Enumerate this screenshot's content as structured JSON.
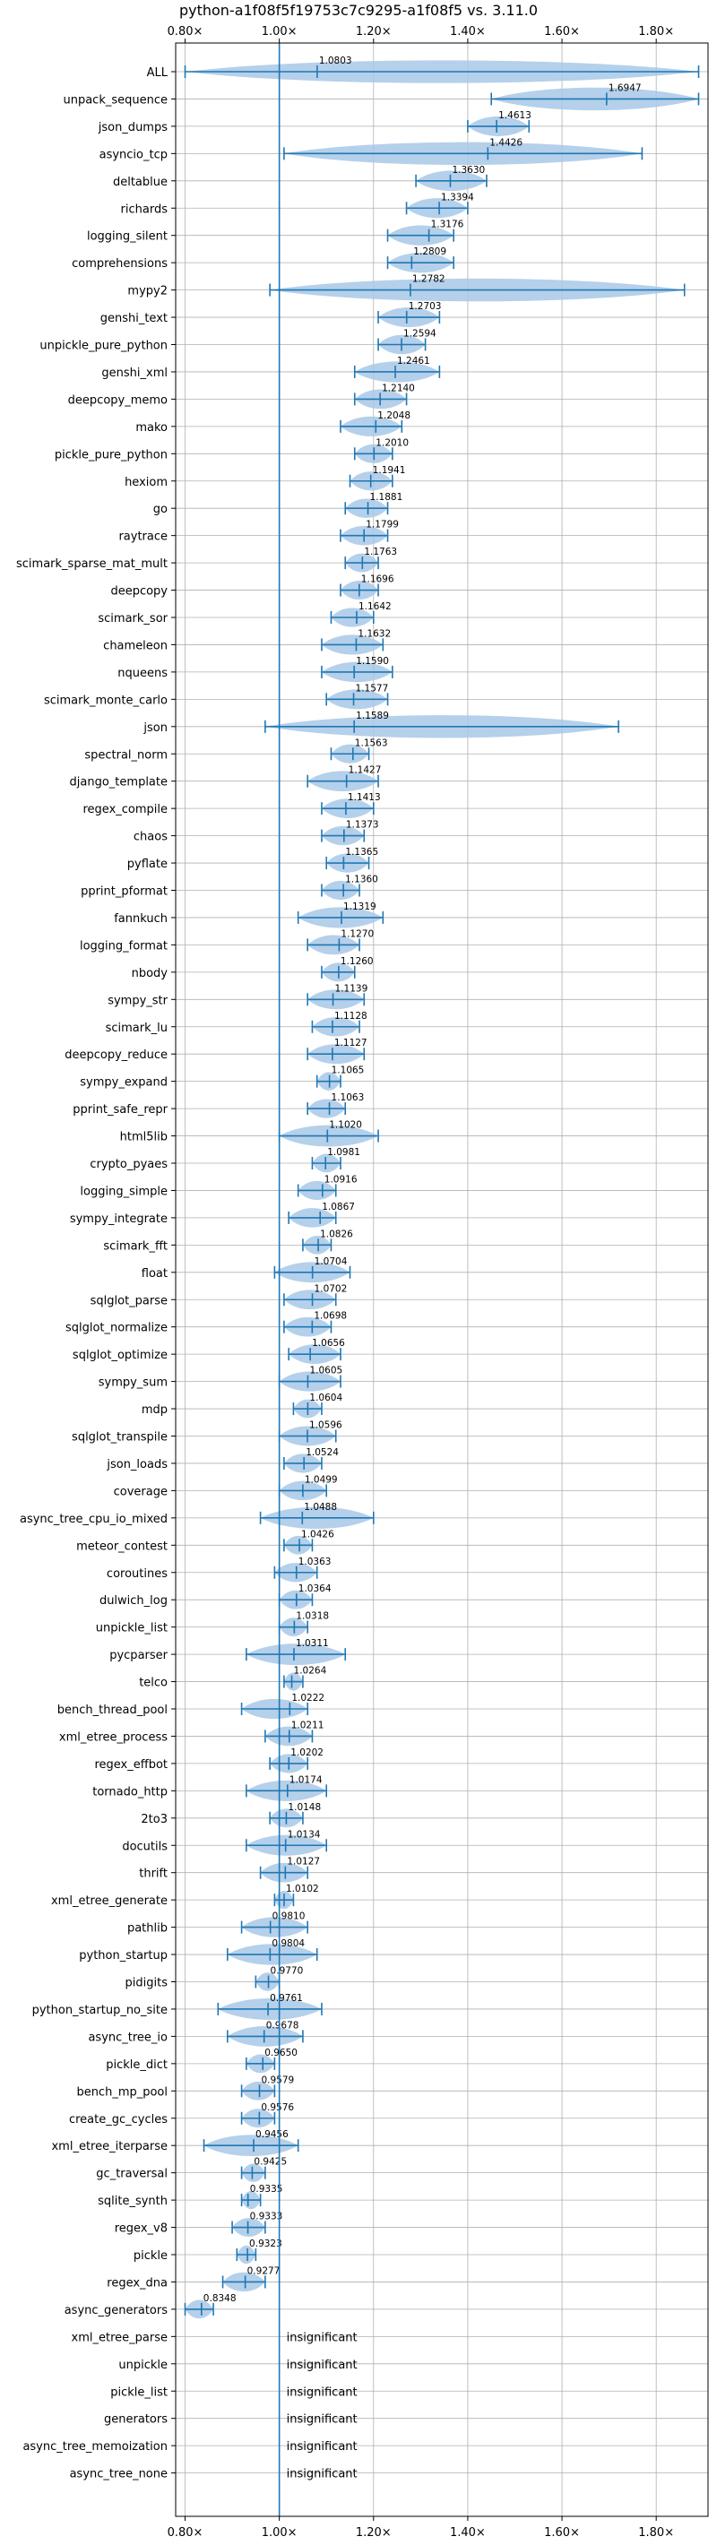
{
  "chart_data": {
    "type": "violin",
    "title": "python-a1f08f5f19753c7c9295-a1f08f5 vs. 3.11.0",
    "xlabel": "",
    "ylabel": "",
    "xlim": [
      0.78,
      1.91
    ],
    "xticks": [
      0.8,
      1.0,
      1.2,
      1.4,
      1.6,
      1.8
    ],
    "xtick_labels": [
      "0.80×",
      "1.00×",
      "1.20×",
      "1.40×",
      "1.60×",
      "1.80×"
    ],
    "reference_x": 1.0,
    "grid": true,
    "colors": {
      "violin": "#a8c8e6",
      "line": "#1f77b4"
    },
    "insignificant_label": "insignificant",
    "benchmarks": [
      {
        "name": "ALL",
        "value": 1.0803,
        "label": "1.0803",
        "min": 0.8,
        "max": 1.89
      },
      {
        "name": "unpack_sequence",
        "value": 1.6947,
        "label": "1.6947",
        "min": 1.45,
        "max": 1.89
      },
      {
        "name": "json_dumps",
        "value": 1.4613,
        "label": "1.4613",
        "min": 1.4,
        "max": 1.53
      },
      {
        "name": "asyncio_tcp",
        "value": 1.4426,
        "label": "1.4426",
        "min": 1.01,
        "max": 1.77
      },
      {
        "name": "deltablue",
        "value": 1.363,
        "label": "1.3630",
        "min": 1.29,
        "max": 1.44
      },
      {
        "name": "richards",
        "value": 1.3394,
        "label": "1.3394",
        "min": 1.27,
        "max": 1.4
      },
      {
        "name": "logging_silent",
        "value": 1.3176,
        "label": "1.3176",
        "min": 1.23,
        "max": 1.37
      },
      {
        "name": "comprehensions",
        "value": 1.2809,
        "label": "1.2809",
        "min": 1.23,
        "max": 1.37
      },
      {
        "name": "mypy2",
        "value": 1.2782,
        "label": "1.2782",
        "min": 0.98,
        "max": 1.86
      },
      {
        "name": "genshi_text",
        "value": 1.2703,
        "label": "1.2703",
        "min": 1.21,
        "max": 1.34
      },
      {
        "name": "unpickle_pure_python",
        "value": 1.2594,
        "label": "1.2594",
        "min": 1.21,
        "max": 1.31
      },
      {
        "name": "genshi_xml",
        "value": 1.2461,
        "label": "1.2461",
        "min": 1.16,
        "max": 1.34
      },
      {
        "name": "deepcopy_memo",
        "value": 1.214,
        "label": "1.2140",
        "min": 1.16,
        "max": 1.27
      },
      {
        "name": "mako",
        "value": 1.2048,
        "label": "1.2048",
        "min": 1.13,
        "max": 1.26
      },
      {
        "name": "pickle_pure_python",
        "value": 1.201,
        "label": "1.2010",
        "min": 1.16,
        "max": 1.24
      },
      {
        "name": "hexiom",
        "value": 1.1941,
        "label": "1.1941",
        "min": 1.15,
        "max": 1.24
      },
      {
        "name": "go",
        "value": 1.1881,
        "label": "1.1881",
        "min": 1.14,
        "max": 1.23
      },
      {
        "name": "raytrace",
        "value": 1.1799,
        "label": "1.1799",
        "min": 1.13,
        "max": 1.23
      },
      {
        "name": "scimark_sparse_mat_mult",
        "value": 1.1763,
        "label": "1.1763",
        "min": 1.14,
        "max": 1.21
      },
      {
        "name": "deepcopy",
        "value": 1.1696,
        "label": "1.1696",
        "min": 1.13,
        "max": 1.21
      },
      {
        "name": "scimark_sor",
        "value": 1.1642,
        "label": "1.1642",
        "min": 1.11,
        "max": 1.2
      },
      {
        "name": "chameleon",
        "value": 1.1632,
        "label": "1.1632",
        "min": 1.09,
        "max": 1.22
      },
      {
        "name": "nqueens",
        "value": 1.159,
        "label": "1.1590",
        "min": 1.09,
        "max": 1.24
      },
      {
        "name": "scimark_monte_carlo",
        "value": 1.1577,
        "label": "1.1577",
        "min": 1.1,
        "max": 1.23
      },
      {
        "name": "json",
        "value": 1.1589,
        "label": "1.1589",
        "min": 0.97,
        "max": 1.72
      },
      {
        "name": "spectral_norm",
        "value": 1.1563,
        "label": "1.1563",
        "min": 1.11,
        "max": 1.19
      },
      {
        "name": "django_template",
        "value": 1.1427,
        "label": "1.1427",
        "min": 1.06,
        "max": 1.21
      },
      {
        "name": "regex_compile",
        "value": 1.1413,
        "label": "1.1413",
        "min": 1.09,
        "max": 1.2
      },
      {
        "name": "chaos",
        "value": 1.1373,
        "label": "1.1373",
        "min": 1.09,
        "max": 1.18
      },
      {
        "name": "pyflate",
        "value": 1.1365,
        "label": "1.1365",
        "min": 1.1,
        "max": 1.19
      },
      {
        "name": "pprint_pformat",
        "value": 1.136,
        "label": "1.1360",
        "min": 1.09,
        "max": 1.17
      },
      {
        "name": "fannkuch",
        "value": 1.1319,
        "label": "1.1319",
        "min": 1.04,
        "max": 1.22
      },
      {
        "name": "logging_format",
        "value": 1.127,
        "label": "1.1270",
        "min": 1.06,
        "max": 1.17
      },
      {
        "name": "nbody",
        "value": 1.126,
        "label": "1.1260",
        "min": 1.09,
        "max": 1.16
      },
      {
        "name": "sympy_str",
        "value": 1.1139,
        "label": "1.1139",
        "min": 1.06,
        "max": 1.18
      },
      {
        "name": "scimark_lu",
        "value": 1.1128,
        "label": "1.1128",
        "min": 1.07,
        "max": 1.17
      },
      {
        "name": "deepcopy_reduce",
        "value": 1.1127,
        "label": "1.1127",
        "min": 1.06,
        "max": 1.18
      },
      {
        "name": "sympy_expand",
        "value": 1.1065,
        "label": "1.1065",
        "min": 1.08,
        "max": 1.13
      },
      {
        "name": "pprint_safe_repr",
        "value": 1.1063,
        "label": "1.1063",
        "min": 1.06,
        "max": 1.14
      },
      {
        "name": "html5lib",
        "value": 1.102,
        "label": "1.1020",
        "min": 1.0,
        "max": 1.21
      },
      {
        "name": "crypto_pyaes",
        "value": 1.0981,
        "label": "1.0981",
        "min": 1.07,
        "max": 1.13
      },
      {
        "name": "logging_simple",
        "value": 1.0916,
        "label": "1.0916",
        "min": 1.04,
        "max": 1.12
      },
      {
        "name": "sympy_integrate",
        "value": 1.0867,
        "label": "1.0867",
        "min": 1.02,
        "max": 1.12
      },
      {
        "name": "scimark_fft",
        "value": 1.0826,
        "label": "1.0826",
        "min": 1.05,
        "max": 1.11
      },
      {
        "name": "float",
        "value": 1.0704,
        "label": "1.0704",
        "min": 0.99,
        "max": 1.15
      },
      {
        "name": "sqlglot_parse",
        "value": 1.0702,
        "label": "1.0702",
        "min": 1.01,
        "max": 1.12
      },
      {
        "name": "sqlglot_normalize",
        "value": 1.0698,
        "label": "1.0698",
        "min": 1.01,
        "max": 1.11
      },
      {
        "name": "sqlglot_optimize",
        "value": 1.0656,
        "label": "1.0656",
        "min": 1.02,
        "max": 1.13
      },
      {
        "name": "sympy_sum",
        "value": 1.0605,
        "label": "1.0605",
        "min": 1.0,
        "max": 1.13
      },
      {
        "name": "mdp",
        "value": 1.0604,
        "label": "1.0604",
        "min": 1.03,
        "max": 1.09
      },
      {
        "name": "sqlglot_transpile",
        "value": 1.0596,
        "label": "1.0596",
        "min": 1.0,
        "max": 1.12
      },
      {
        "name": "json_loads",
        "value": 1.0524,
        "label": "1.0524",
        "min": 1.01,
        "max": 1.09
      },
      {
        "name": "coverage",
        "value": 1.0499,
        "label": "1.0499",
        "min": 1.0,
        "max": 1.1
      },
      {
        "name": "async_tree_cpu_io_mixed",
        "value": 1.0488,
        "label": "1.0488",
        "min": 0.96,
        "max": 1.2
      },
      {
        "name": "meteor_contest",
        "value": 1.0426,
        "label": "1.0426",
        "min": 1.01,
        "max": 1.07
      },
      {
        "name": "coroutines",
        "value": 1.0363,
        "label": "1.0363",
        "min": 0.99,
        "max": 1.08
      },
      {
        "name": "dulwich_log",
        "value": 1.0364,
        "label": "1.0364",
        "min": 1.0,
        "max": 1.07
      },
      {
        "name": "unpickle_list",
        "value": 1.0318,
        "label": "1.0318",
        "min": 1.0,
        "max": 1.06
      },
      {
        "name": "pycparser",
        "value": 1.0311,
        "label": "1.0311",
        "min": 0.93,
        "max": 1.14
      },
      {
        "name": "telco",
        "value": 1.0264,
        "label": "1.0264",
        "min": 1.01,
        "max": 1.05
      },
      {
        "name": "bench_thread_pool",
        "value": 1.0222,
        "label": "1.0222",
        "min": 0.92,
        "max": 1.06
      },
      {
        "name": "xml_etree_process",
        "value": 1.0211,
        "label": "1.0211",
        "min": 0.97,
        "max": 1.07
      },
      {
        "name": "regex_effbot",
        "value": 1.0202,
        "label": "1.0202",
        "min": 0.98,
        "max": 1.06
      },
      {
        "name": "tornado_http",
        "value": 1.0174,
        "label": "1.0174",
        "min": 0.93,
        "max": 1.1
      },
      {
        "name": "2to3",
        "value": 1.0148,
        "label": "1.0148",
        "min": 0.98,
        "max": 1.05
      },
      {
        "name": "docutils",
        "value": 1.0134,
        "label": "1.0134",
        "min": 0.93,
        "max": 1.1
      },
      {
        "name": "thrift",
        "value": 1.0127,
        "label": "1.0127",
        "min": 0.96,
        "max": 1.06
      },
      {
        "name": "xml_etree_generate",
        "value": 1.0102,
        "label": "1.0102",
        "min": 0.99,
        "max": 1.03
      },
      {
        "name": "pathlib",
        "value": 0.981,
        "label": "0.9810",
        "min": 0.92,
        "max": 1.06
      },
      {
        "name": "python_startup",
        "value": 0.9804,
        "label": "0.9804",
        "min": 0.89,
        "max": 1.08
      },
      {
        "name": "pidigits",
        "value": 0.977,
        "label": "0.9770",
        "min": 0.95,
        "max": 1.0
      },
      {
        "name": "python_startup_no_site",
        "value": 0.9761,
        "label": "0.9761",
        "min": 0.87,
        "max": 1.09
      },
      {
        "name": "async_tree_io",
        "value": 0.9678,
        "label": "0.9678",
        "min": 0.89,
        "max": 1.05
      },
      {
        "name": "pickle_dict",
        "value": 0.965,
        "label": "0.9650",
        "min": 0.93,
        "max": 0.99
      },
      {
        "name": "bench_mp_pool",
        "value": 0.9579,
        "label": "0.9579",
        "min": 0.92,
        "max": 0.99
      },
      {
        "name": "create_gc_cycles",
        "value": 0.9576,
        "label": "0.9576",
        "min": 0.92,
        "max": 0.99
      },
      {
        "name": "xml_etree_iterparse",
        "value": 0.9456,
        "label": "0.9456",
        "min": 0.84,
        "max": 1.04
      },
      {
        "name": "gc_traversal",
        "value": 0.9425,
        "label": "0.9425",
        "min": 0.92,
        "max": 0.97
      },
      {
        "name": "sqlite_synth",
        "value": 0.9335,
        "label": "0.9335",
        "min": 0.92,
        "max": 0.96
      },
      {
        "name": "regex_v8",
        "value": 0.9333,
        "label": "0.9333",
        "min": 0.9,
        "max": 0.97
      },
      {
        "name": "pickle",
        "value": 0.9323,
        "label": "0.9323",
        "min": 0.91,
        "max": 0.95
      },
      {
        "name": "regex_dna",
        "value": 0.9277,
        "label": "0.9277",
        "min": 0.88,
        "max": 0.97
      },
      {
        "name": "async_generators",
        "value": 0.8348,
        "label": "0.8348",
        "min": 0.8,
        "max": 0.86
      },
      {
        "name": "xml_etree_parse",
        "insignificant": true
      },
      {
        "name": "unpickle",
        "insignificant": true
      },
      {
        "name": "pickle_list",
        "insignificant": true
      },
      {
        "name": "generators",
        "insignificant": true
      },
      {
        "name": "async_tree_memoization",
        "insignificant": true
      },
      {
        "name": "async_tree_none",
        "insignificant": true
      }
    ]
  }
}
